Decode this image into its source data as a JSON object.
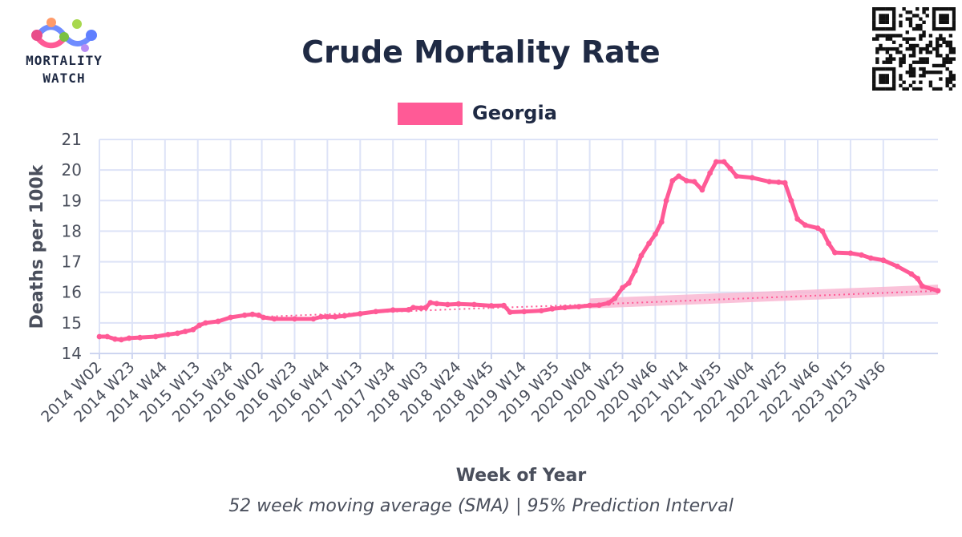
{
  "logo": {
    "line1": "MORTALITY",
    "line2": "WATCH"
  },
  "colors": {
    "series": "#ff5a96",
    "interval": "#f9b3cf",
    "grid": "#dde3f7",
    "title": "#1f2a44",
    "axis_text": "#4a4f5c",
    "axis_line": "#cdd5f0"
  },
  "chart_data": {
    "type": "line",
    "title": "Crude Mortality Rate",
    "xlabel": "Week of Year",
    "ylabel": "Deaths per 100k",
    "subtitle": "52 week moving average (SMA) | 95% Prediction Interval",
    "ylim": [
      14,
      21
    ],
    "yticks": [
      14,
      15,
      16,
      17,
      18,
      19,
      20,
      21
    ],
    "grid": true,
    "legend_position": "top-center",
    "x_range": [
      "2014 W02",
      "2024 W19"
    ],
    "xticks": [
      "2014 W02",
      "2014 W23",
      "2014 W44",
      "2015 W13",
      "2015 W34",
      "2016 W02",
      "2016 W23",
      "2016 W44",
      "2017 W13",
      "2017 W34",
      "2018 W03",
      "2018 W24",
      "2018 W45",
      "2019 W14",
      "2019 W35",
      "2020 W04",
      "2020 W25",
      "2020 W46",
      "2021 W14",
      "2021 W35",
      "2022 W04",
      "2022 W25",
      "2022 W46",
      "2023 W15",
      "2023 W36"
    ],
    "series": [
      {
        "name": "Georgia",
        "points": [
          [
            "2014 W02",
            14.55
          ],
          [
            "2014 W07",
            14.55
          ],
          [
            "2014 W12",
            14.47
          ],
          [
            "2014 W16",
            14.45
          ],
          [
            "2014 W21",
            14.5
          ],
          [
            "2014 W28",
            14.52
          ],
          [
            "2014 W38",
            14.55
          ],
          [
            "2014 W46",
            14.62
          ],
          [
            "2014 W52",
            14.66
          ],
          [
            "2015 W05",
            14.72
          ],
          [
            "2015 W10",
            14.78
          ],
          [
            "2015 W14",
            14.92
          ],
          [
            "2015 W18",
            15.0
          ],
          [
            "2015 W26",
            15.05
          ],
          [
            "2015 W34",
            15.18
          ],
          [
            "2015 W43",
            15.25
          ],
          [
            "2015 W48",
            15.28
          ],
          [
            "2015 W52",
            15.25
          ],
          [
            "2016 W03",
            15.18
          ],
          [
            "2016 W10",
            15.13
          ],
          [
            "2016 W23",
            15.13
          ],
          [
            "2016 W35",
            15.13
          ],
          [
            "2016 W40",
            15.2
          ],
          [
            "2016 W44",
            15.2
          ],
          [
            "2016 W49",
            15.2
          ],
          [
            "2017 W03",
            15.23
          ],
          [
            "2017 W13",
            15.3
          ],
          [
            "2017 W23",
            15.37
          ],
          [
            "2017 W34",
            15.42
          ],
          [
            "2017 W44",
            15.43
          ],
          [
            "2017 W47",
            15.5
          ],
          [
            "2017 W52",
            15.48
          ],
          [
            "2018 W03",
            15.5
          ],
          [
            "2018 W06",
            15.66
          ],
          [
            "2018 W10",
            15.63
          ],
          [
            "2018 W17",
            15.6
          ],
          [
            "2018 W24",
            15.62
          ],
          [
            "2018 W34",
            15.6
          ],
          [
            "2018 W45",
            15.56
          ],
          [
            "2019 W01",
            15.57
          ],
          [
            "2019 W05",
            15.35
          ],
          [
            "2019 W14",
            15.37
          ],
          [
            "2019 W25",
            15.4
          ],
          [
            "2019 W32",
            15.46
          ],
          [
            "2019 W40",
            15.5
          ],
          [
            "2019 W49",
            15.53
          ],
          [
            "2020 W04",
            15.57
          ],
          [
            "2020 W10",
            15.58
          ],
          [
            "2020 W16",
            15.65
          ],
          [
            "2020 W20",
            15.8
          ],
          [
            "2020 W25",
            16.15
          ],
          [
            "2020 W29",
            16.3
          ],
          [
            "2020 W33",
            16.7
          ],
          [
            "2020 W37",
            17.2
          ],
          [
            "2020 W42",
            17.6
          ],
          [
            "2020 W46",
            17.9
          ],
          [
            "2020 W50",
            18.3
          ],
          [
            "2021 W01",
            19.0
          ],
          [
            "2021 W05",
            19.65
          ],
          [
            "2021 W09",
            19.8
          ],
          [
            "2021 W14",
            19.65
          ],
          [
            "2021 W19",
            19.62
          ],
          [
            "2021 W24",
            19.35
          ],
          [
            "2021 W29",
            19.9
          ],
          [
            "2021 W33",
            20.27
          ],
          [
            "2021 W38",
            20.27
          ],
          [
            "2021 W42",
            20.05
          ],
          [
            "2021 W46",
            19.8
          ],
          [
            "2022 W04",
            19.75
          ],
          [
            "2022 W15",
            19.62
          ],
          [
            "2022 W21",
            19.6
          ],
          [
            "2022 W25",
            19.58
          ],
          [
            "2022 W29",
            19.0
          ],
          [
            "2022 W33",
            18.4
          ],
          [
            "2022 W38",
            18.2
          ],
          [
            "2022 W46",
            18.1
          ],
          [
            "2022 W49",
            18.0
          ],
          [
            "2023 W01",
            17.6
          ],
          [
            "2023 W05",
            17.3
          ],
          [
            "2023 W15",
            17.28
          ],
          [
            "2023 W22",
            17.22
          ],
          [
            "2023 W28",
            17.12
          ],
          [
            "2023 W36",
            17.05
          ],
          [
            "2023 W45",
            16.85
          ],
          [
            "2024 W02",
            16.6
          ],
          [
            "2024 W06",
            16.45
          ],
          [
            "2024 W09",
            16.2
          ],
          [
            "2024 W19",
            16.05
          ]
        ]
      },
      {
        "name": "Baseline",
        "style": "dotted",
        "points": [
          [
            "2016 W02",
            15.2
          ],
          [
            "2018 W24",
            15.45
          ],
          [
            "2020 W04",
            15.6
          ],
          [
            "2024 W19",
            16.05
          ]
        ]
      },
      {
        "name": "95% Prediction Interval",
        "style": "band",
        "points": [
          [
            "2020 W04",
            15.47,
            15.8
          ],
          [
            "2024 W19",
            15.92,
            16.25
          ]
        ]
      }
    ]
  }
}
